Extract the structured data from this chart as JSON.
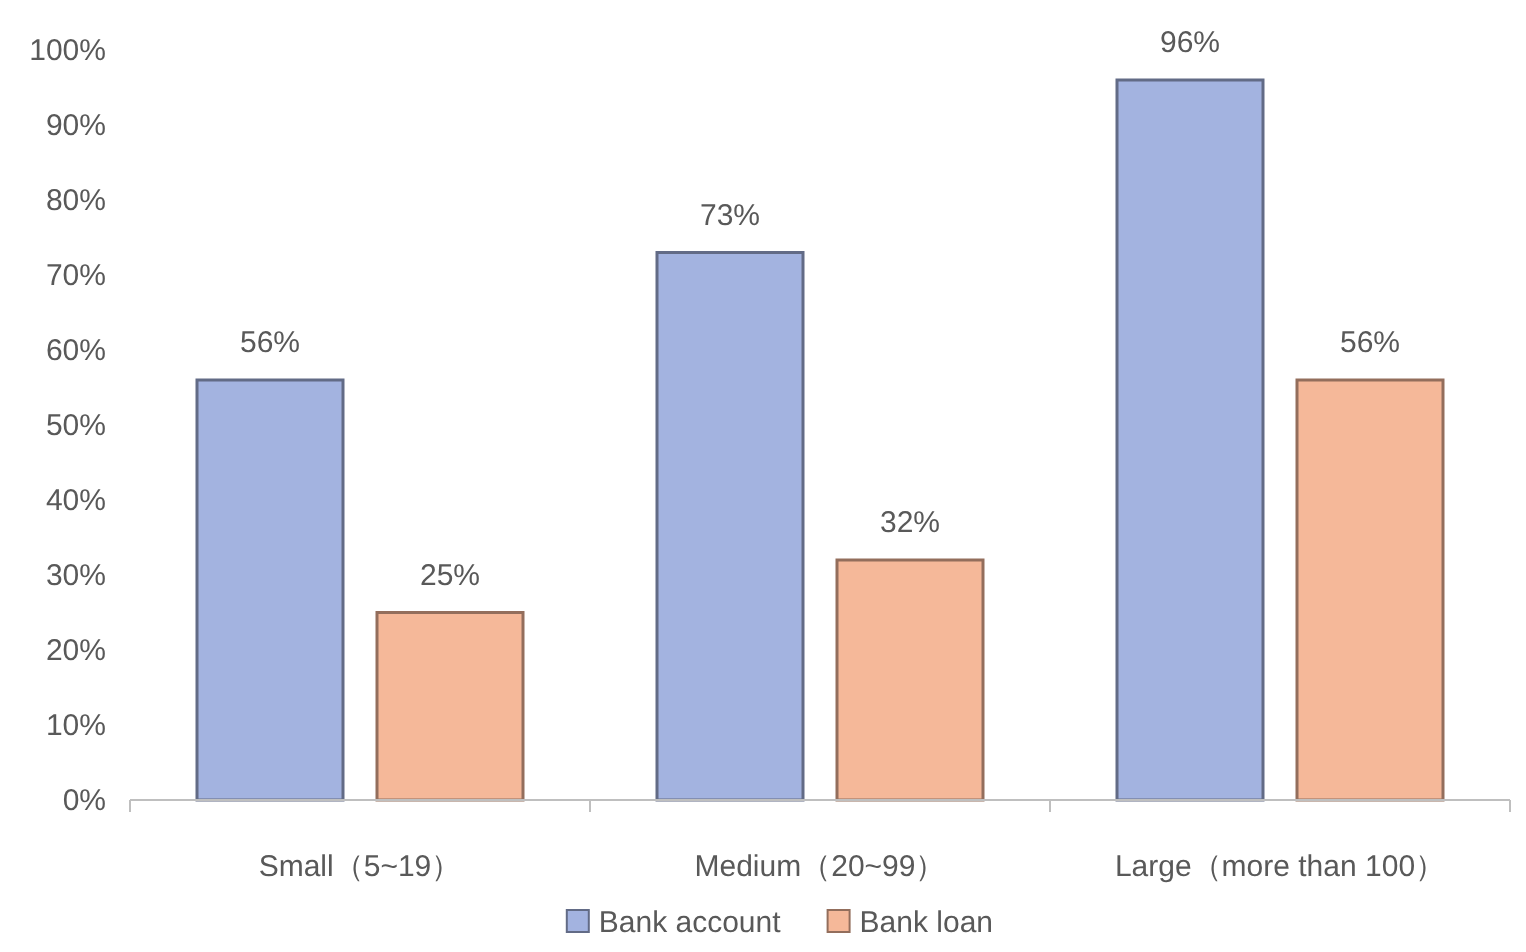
{
  "chart_data": {
    "type": "bar",
    "categories": [
      "Small（5~19）",
      "Medium（20~99）",
      "Large（more than 100）"
    ],
    "series": [
      {
        "name": "Bank account",
        "color": "#a3b3e0",
        "values": [
          56,
          73,
          96
        ],
        "value_labels": [
          "56%",
          "73%",
          "96%"
        ]
      },
      {
        "name": "Bank loan",
        "color": "#f5b899",
        "values": [
          25,
          32,
          56
        ],
        "value_labels": [
          "25%",
          "32%",
          "56%"
        ]
      }
    ],
    "ylim": [
      0,
      100
    ],
    "yticks": [
      {
        "value": 0,
        "label": "0%"
      },
      {
        "value": 10,
        "label": "10%"
      },
      {
        "value": 20,
        "label": "20%"
      },
      {
        "value": 30,
        "label": "30%"
      },
      {
        "value": 40,
        "label": "40%"
      },
      {
        "value": 50,
        "label": "50%"
      },
      {
        "value": 60,
        "label": "60%"
      },
      {
        "value": 70,
        "label": "70%"
      },
      {
        "value": 80,
        "label": "80%"
      },
      {
        "value": 90,
        "label": "90%"
      },
      {
        "value": 100,
        "label": "100%"
      }
    ],
    "grid": false,
    "legend": "bottom"
  }
}
